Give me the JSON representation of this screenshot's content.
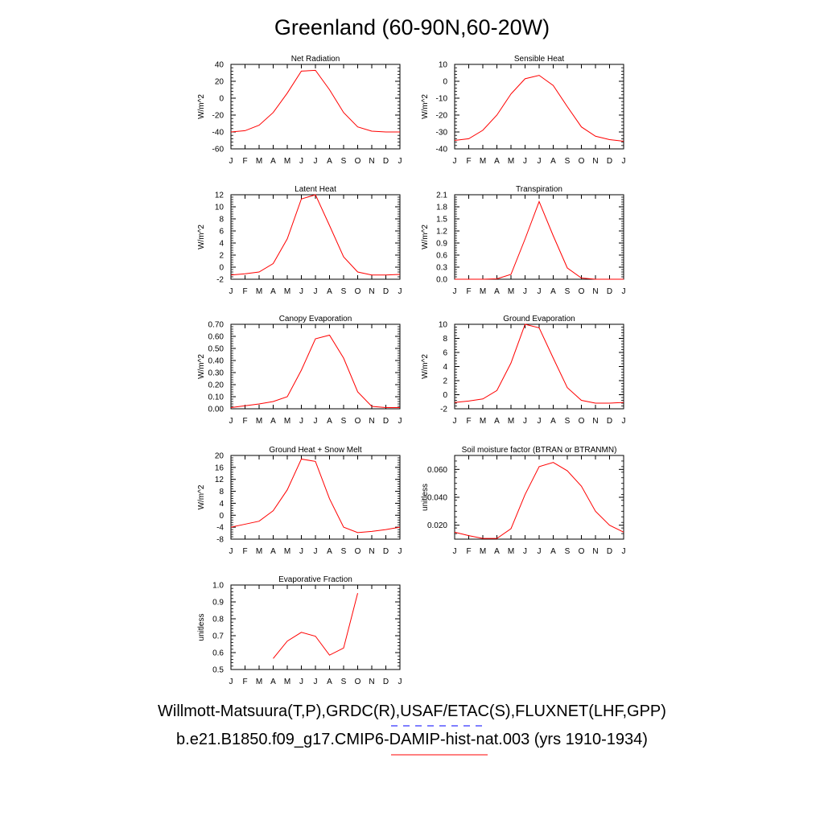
{
  "figure": {
    "title": "Greenland (60-90N,60-20W)",
    "legend": [
      {
        "label": "Willmott-Matsuura(T,P),GRDC(R),USAF/ETAC(S),FLUXNET(LHF,GPP)",
        "color": "#0000ff",
        "style": "dashed"
      },
      {
        "label": "b.e21.B1850.f09_g17.CMIP6-DAMIP-hist-nat.003 (yrs 1910-1934)",
        "color": "#ff0000",
        "style": "solid"
      }
    ],
    "series_color": "#ff0000"
  },
  "chart_data": [
    {
      "type": "line",
      "title": "Net Radiation",
      "ylabel": "W/m^2",
      "categories": [
        "J",
        "F",
        "M",
        "A",
        "M",
        "J",
        "J",
        "A",
        "S",
        "O",
        "N",
        "D",
        "J"
      ],
      "ylim": [
        -60,
        40
      ],
      "yticks": [
        -60,
        -40,
        -20,
        0,
        20,
        40
      ],
      "ytick_labels": [
        "-60",
        "-40",
        "-20",
        "0",
        "20",
        "40"
      ],
      "series": [
        {
          "values": [
            -40,
            -38.5,
            -32,
            -17,
            6,
            32,
            33,
            10,
            -17,
            -34,
            -39,
            -40,
            -40
          ]
        }
      ]
    },
    {
      "type": "line",
      "title": "Sensible Heat",
      "ylabel": "W/m^2",
      "categories": [
        "J",
        "F",
        "M",
        "A",
        "M",
        "J",
        "J",
        "A",
        "S",
        "O",
        "N",
        "D",
        "J"
      ],
      "ylim": [
        -40,
        10
      ],
      "yticks": [
        -40,
        -30,
        -20,
        -10,
        0,
        10
      ],
      "ytick_labels": [
        "-40",
        "-30",
        "-20",
        "-10",
        "0",
        "10"
      ],
      "series": [
        {
          "values": [
            -35,
            -34,
            -29,
            -20,
            -7.5,
            1.5,
            3.5,
            -2.5,
            -15,
            -27,
            -32.5,
            -34.5,
            -35.5
          ]
        }
      ]
    },
    {
      "type": "line",
      "title": "Latent Heat",
      "ylabel": "W/m^2",
      "categories": [
        "J",
        "F",
        "M",
        "A",
        "M",
        "J",
        "J",
        "A",
        "S",
        "O",
        "N",
        "D",
        "J"
      ],
      "ylim": [
        -2,
        12
      ],
      "yticks": [
        -2,
        0,
        2,
        4,
        6,
        8,
        10,
        12
      ],
      "ytick_labels": [
        "-2",
        "0",
        "2",
        "4",
        "6",
        "8",
        "10",
        "12"
      ],
      "series": [
        {
          "values": [
            -1.3,
            -1.1,
            -0.8,
            0.6,
            4.7,
            11.3,
            12.0,
            6.9,
            1.7,
            -0.8,
            -1.3,
            -1.3,
            -1.2
          ]
        }
      ]
    },
    {
      "type": "line",
      "title": "Transpiration",
      "ylabel": "W/m^2",
      "categories": [
        "J",
        "F",
        "M",
        "A",
        "M",
        "J",
        "J",
        "A",
        "S",
        "O",
        "N",
        "D",
        "J"
      ],
      "ylim": [
        0,
        2.1
      ],
      "yticks": [
        0,
        0.3,
        0.6,
        0.9,
        1.2,
        1.5,
        1.8,
        2.1
      ],
      "ytick_labels": [
        "0.0",
        "0.3",
        "0.6",
        "0.9",
        "1.2",
        "1.5",
        "1.8",
        "2.1"
      ],
      "series": [
        {
          "values": [
            0,
            0,
            0,
            0.01,
            0.12,
            1.0,
            1.93,
            1.08,
            0.28,
            0.03,
            0,
            0,
            0
          ]
        }
      ]
    },
    {
      "type": "line",
      "title": "Canopy Evaporation",
      "ylabel": "W/m^2",
      "categories": [
        "J",
        "F",
        "M",
        "A",
        "M",
        "J",
        "J",
        "A",
        "S",
        "O",
        "N",
        "D",
        "J"
      ],
      "ylim": [
        0,
        0.7
      ],
      "yticks": [
        0,
        0.1,
        0.2,
        0.3,
        0.4,
        0.5,
        0.6,
        0.7
      ],
      "ytick_labels": [
        "0.00",
        "0.10",
        "0.20",
        "0.30",
        "0.40",
        "0.50",
        "0.60",
        "0.70"
      ],
      "series": [
        {
          "values": [
            0.01,
            0.025,
            0.04,
            0.06,
            0.1,
            0.32,
            0.58,
            0.61,
            0.42,
            0.14,
            0.02,
            0.01,
            0.01
          ]
        }
      ]
    },
    {
      "type": "line",
      "title": "Ground Evaporation",
      "ylabel": "W/m^2",
      "categories": [
        "J",
        "F",
        "M",
        "A",
        "M",
        "J",
        "J",
        "A",
        "S",
        "O",
        "N",
        "D",
        "J"
      ],
      "ylim": [
        -2,
        10
      ],
      "yticks": [
        -2,
        0,
        2,
        4,
        6,
        8,
        10
      ],
      "ytick_labels": [
        "-2",
        "0",
        "2",
        "4",
        "6",
        "8",
        "10"
      ],
      "series": [
        {
          "values": [
            -1.1,
            -0.9,
            -0.6,
            0.6,
            4.5,
            10.0,
            9.5,
            5.2,
            1.0,
            -0.8,
            -1.2,
            -1.2,
            -1.1
          ]
        }
      ]
    },
    {
      "type": "line",
      "title": "Ground Heat + Snow Melt",
      "ylabel": "W/m^2",
      "categories": [
        "J",
        "F",
        "M",
        "A",
        "M",
        "J",
        "J",
        "A",
        "S",
        "O",
        "N",
        "D",
        "J"
      ],
      "ylim": [
        -8,
        20
      ],
      "yticks": [
        -8,
        -4,
        0,
        4,
        8,
        12,
        16,
        20
      ],
      "ytick_labels": [
        "-8",
        "-4",
        "0",
        "4",
        "8",
        "12",
        "16",
        "20"
      ],
      "series": [
        {
          "values": [
            -4,
            -3,
            -2,
            1.5,
            8.5,
            18.8,
            18,
            5.5,
            -4,
            -5.8,
            -5.4,
            -4.8,
            -4
          ]
        }
      ]
    },
    {
      "type": "line",
      "title": "Soil moisture factor (BTRAN or BTRANMN)",
      "ylabel": "unitless",
      "categories": [
        "J",
        "F",
        "M",
        "A",
        "M",
        "J",
        "J",
        "A",
        "S",
        "O",
        "N",
        "D",
        "J"
      ],
      "ylim": [
        0.01,
        0.07
      ],
      "yticks": [
        0.02,
        0.04,
        0.06
      ],
      "ytick_labels": [
        "0.020",
        "0.040",
        "0.060"
      ],
      "series": [
        {
          "values": [
            0.015,
            0.0125,
            0.0105,
            0.0105,
            0.0175,
            0.042,
            0.062,
            0.065,
            0.059,
            0.048,
            0.03,
            0.02,
            0.015
          ]
        }
      ]
    },
    {
      "type": "line",
      "title": "Evaporative Fraction",
      "ylabel": "unitless",
      "categories": [
        "J",
        "F",
        "M",
        "A",
        "M",
        "J",
        "J",
        "A",
        "S",
        "O",
        "N",
        "D",
        "J"
      ],
      "ylim": [
        0.5,
        1.0
      ],
      "yticks": [
        0.5,
        0.6,
        0.7,
        0.8,
        0.9,
        1.0
      ],
      "ytick_labels": [
        "0.5",
        "0.6",
        "0.7",
        "0.8",
        "0.9",
        "1.0"
      ],
      "series": [
        {
          "values": [
            null,
            null,
            null,
            0.565,
            0.668,
            0.72,
            0.697,
            0.585,
            0.627,
            0.952,
            null,
            null,
            null
          ]
        }
      ]
    }
  ]
}
